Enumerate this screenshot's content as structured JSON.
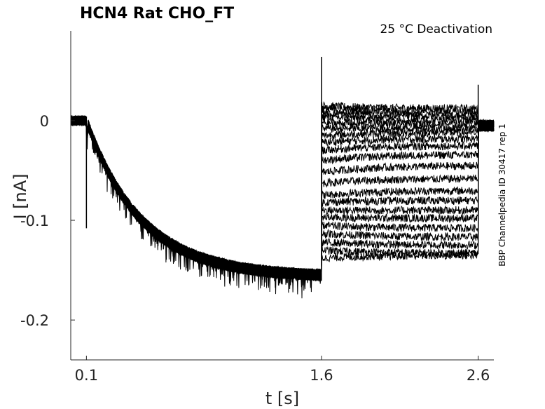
{
  "chart_data": {
    "type": "line",
    "title": "HCN4  Rat  CHO_FT",
    "annotation": "25 °C  Deactivation",
    "side_label": "BBP Channelpedia ID 30417 rep 1",
    "xlabel": "t [s]",
    "ylabel": "I [nA]",
    "xlim": [
      0.0,
      2.7
    ],
    "ylim": [
      -0.24,
      0.09
    ],
    "x_ticks": [
      0.1,
      1.6,
      2.6
    ],
    "x_tick_labels": [
      "0.1",
      "1.6",
      "2.6"
    ],
    "y_ticks": [
      0,
      -0.1,
      -0.2
    ],
    "y_tick_labels": [
      "0",
      "-0.1",
      "-0.2"
    ],
    "grid": false,
    "line_color": "#000000",
    "protocol": {
      "t_activation_start": 0.1,
      "t_step": 1.6,
      "t_step_end": 2.6,
      "baseline_current": 0.0,
      "activation_plateau": -0.157,
      "activation_time_constant": 0.35
    },
    "series": [
      {
        "start": 0.015,
        "end": 0.012
      },
      {
        "start": 0.012,
        "end": 0.008
      },
      {
        "start": 0.008,
        "end": 0.004
      },
      {
        "start": 0.004,
        "end": 0.0
      },
      {
        "start": -0.002,
        "end": -0.004
      },
      {
        "start": -0.008,
        "end": -0.008
      },
      {
        "start": -0.015,
        "end": -0.012
      },
      {
        "start": -0.022,
        "end": -0.018
      },
      {
        "start": -0.03,
        "end": -0.025
      },
      {
        "start": -0.04,
        "end": -0.034
      },
      {
        "start": -0.052,
        "end": -0.045
      },
      {
        "start": -0.063,
        "end": -0.058
      },
      {
        "start": -0.075,
        "end": -0.07
      },
      {
        "start": -0.082,
        "end": -0.08
      },
      {
        "start": -0.09,
        "end": -0.09
      },
      {
        "start": -0.097,
        "end": -0.098
      },
      {
        "start": -0.105,
        "end": -0.108
      },
      {
        "start": -0.113,
        "end": -0.117
      },
      {
        "start": -0.122,
        "end": -0.125
      },
      {
        "start": -0.13,
        "end": -0.133
      },
      {
        "start": -0.138,
        "end": -0.135
      }
    ]
  }
}
